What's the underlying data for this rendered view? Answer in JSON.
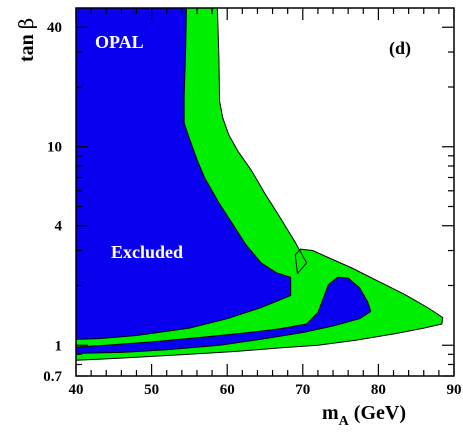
{
  "chart_data": {
    "type": "area",
    "title": "",
    "panel_label": "(d)",
    "xlabel": {
      "main": "m",
      "sub": "A",
      "unit": " (GeV)"
    },
    "ylabel": {
      "main": "tan ",
      "greek": "β"
    },
    "xlim": [
      40,
      90
    ],
    "ylim": [
      0.7,
      50
    ],
    "yscale": "log",
    "x_ticks": [
      40,
      50,
      60,
      70,
      80,
      90
    ],
    "y_ticks": [
      0.7,
      1,
      4,
      10,
      40
    ],
    "y_tick_labels": [
      "0.7",
      "1",
      "4",
      "10",
      "40"
    ],
    "grid": false,
    "annotations": {
      "experiment": "OPAL",
      "region": "Excluded"
    },
    "colors": {
      "observed_excluded": "#0a00f0",
      "expected_excluded": "#00ee00",
      "outline": "#000000",
      "experiment_text": "#ffffff",
      "region_text": "#ffffff",
      "panel_text": "#000000"
    },
    "regions": [
      {
        "name": "expected_excluded",
        "color_key": "expected_excluded",
        "points": [
          [
            40,
            50
          ],
          [
            58.7,
            50
          ],
          [
            58.9,
            28
          ],
          [
            59.0,
            17
          ],
          [
            59.4,
            14
          ],
          [
            60.2,
            11.5
          ],
          [
            61.5,
            9.4
          ],
          [
            63.2,
            7.6
          ],
          [
            65.0,
            5.8
          ],
          [
            67.0,
            4.4
          ],
          [
            69.0,
            3.3
          ],
          [
            70.5,
            2.6
          ],
          [
            69.3,
            2.3
          ],
          [
            69.0,
            2.85
          ],
          [
            69.7,
            3.05
          ],
          [
            71.3,
            3.0
          ],
          [
            73.5,
            2.75
          ],
          [
            76.5,
            2.45
          ],
          [
            80.0,
            2.1
          ],
          [
            83.5,
            1.8
          ],
          [
            86.5,
            1.55
          ],
          [
            88.5,
            1.38
          ],
          [
            88.4,
            1.28
          ],
          [
            86.0,
            1.22
          ],
          [
            82.0,
            1.14
          ],
          [
            77.0,
            1.06
          ],
          [
            72.0,
            1.0
          ],
          [
            67.0,
            0.97
          ],
          [
            61.0,
            0.93
          ],
          [
            55.0,
            0.9
          ],
          [
            48.0,
            0.87
          ],
          [
            43.0,
            0.85
          ],
          [
            40,
            0.84
          ]
        ]
      },
      {
        "name": "observed_excluded",
        "color_key": "observed_excluded",
        "points": [
          [
            40,
            50
          ],
          [
            54.6,
            50
          ],
          [
            54.5,
            30
          ],
          [
            54.3,
            18
          ],
          [
            54.3,
            13.2
          ],
          [
            55.0,
            11.0
          ],
          [
            56.0,
            8.6
          ],
          [
            57.0,
            7.0
          ],
          [
            58.8,
            5.3
          ],
          [
            60.5,
            4.2
          ],
          [
            62.5,
            3.2
          ],
          [
            64.5,
            2.6
          ],
          [
            66.5,
            2.32
          ],
          [
            68.4,
            2.2
          ],
          [
            68.4,
            1.78
          ],
          [
            64.5,
            1.55
          ],
          [
            60.0,
            1.36
          ],
          [
            55.0,
            1.22
          ],
          [
            48.0,
            1.12
          ],
          [
            43.0,
            1.08
          ],
          [
            40,
            1.07
          ]
        ]
      },
      {
        "name": "observed_excluded_lower_band",
        "color_key": "observed_excluded",
        "points": [
          [
            40,
            0.91
          ],
          [
            40,
            0.98
          ],
          [
            44.0,
            1.0
          ],
          [
            50.0,
            1.04
          ],
          [
            56.0,
            1.09
          ],
          [
            62.0,
            1.15
          ],
          [
            67.0,
            1.21
          ],
          [
            70.5,
            1.28
          ],
          [
            72.0,
            1.46
          ],
          [
            72.7,
            1.72
          ],
          [
            73.4,
            2.02
          ],
          [
            74.6,
            2.2
          ],
          [
            76.0,
            2.18
          ],
          [
            77.5,
            1.95
          ],
          [
            78.6,
            1.65
          ],
          [
            79.0,
            1.48
          ],
          [
            77.5,
            1.36
          ],
          [
            74.0,
            1.25
          ],
          [
            70.0,
            1.16
          ],
          [
            65.0,
            1.08
          ],
          [
            59.0,
            1.0
          ],
          [
            52.0,
            0.95
          ],
          [
            46.0,
            0.92
          ]
        ]
      }
    ]
  }
}
